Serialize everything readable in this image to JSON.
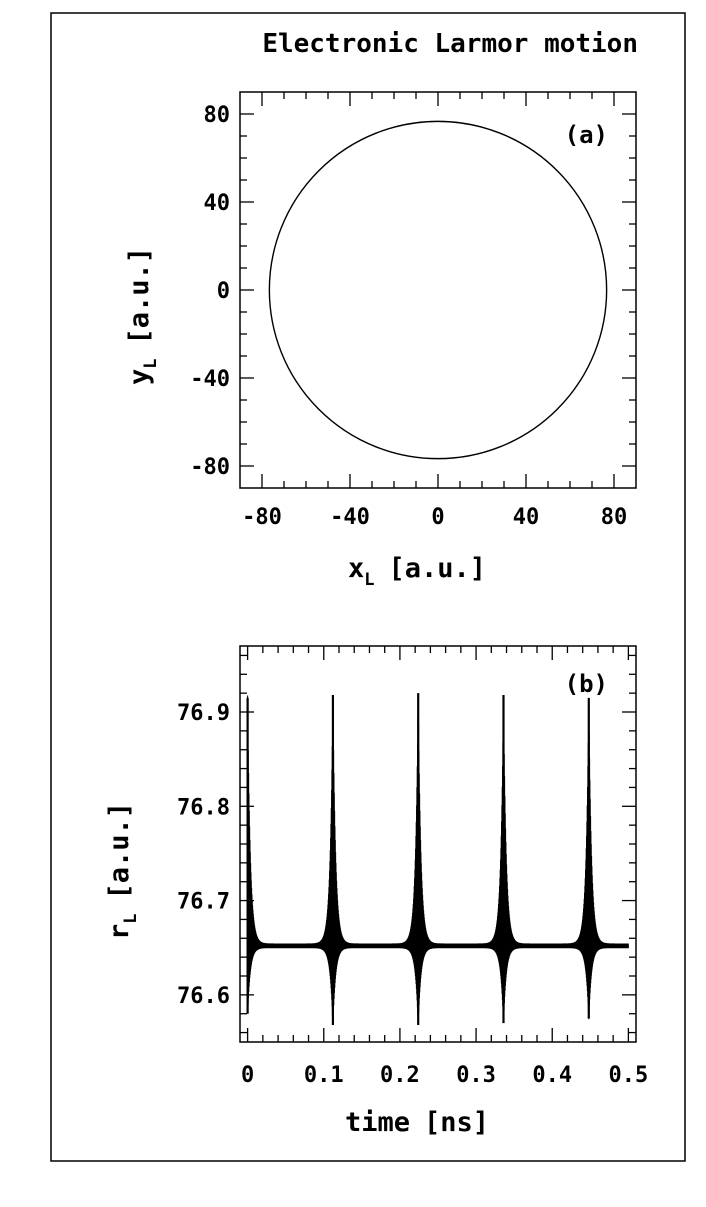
{
  "figure": {
    "title": "Electronic Larmor motion"
  },
  "chart_data": [
    {
      "type": "line",
      "panel_label": "(a)",
      "xlabel": {
        "main": "x",
        "sub": "L",
        "unit": "[a.u.]"
      },
      "ylabel": {
        "main": "y",
        "sub": "L",
        "unit": "[a.u.]"
      },
      "xlim": [
        -90,
        90
      ],
      "ylim": [
        -90,
        90
      ],
      "xticks": [
        -80,
        -40,
        0,
        40,
        80
      ],
      "yticks": [
        80,
        40,
        0,
        -40,
        -80
      ],
      "series": [
        {
          "shape": "circle",
          "center": [
            0,
            0
          ],
          "radius": 76.65
        }
      ]
    },
    {
      "type": "line",
      "panel_label": "(b)",
      "xlabel": {
        "main": "time",
        "unit": "[ns]"
      },
      "ylabel": {
        "main": "r",
        "sub": "L",
        "unit": "[a.u.]"
      },
      "xlim": [
        -0.01,
        0.51
      ],
      "ylim": [
        76.55,
        76.97
      ],
      "xticks": [
        "0",
        "0.1",
        "0.2",
        "0.3",
        "0.4",
        "0.5"
      ],
      "yticks": [
        "76.9",
        "76.8",
        "76.7",
        "76.6"
      ],
      "baseline": 76.652,
      "series": [
        {
          "peaks": [
            {
              "t": 0.0,
              "max": 76.915,
              "min": 76.58
            },
            {
              "t": 0.112,
              "max": 76.918,
              "min": 76.568
            },
            {
              "t": 0.224,
              "max": 76.92,
              "min": 76.568
            },
            {
              "t": 0.336,
              "max": 76.918,
              "min": 76.57
            },
            {
              "t": 0.448,
              "max": 76.915,
              "min": 76.575
            }
          ],
          "t_end": 0.5
        }
      ]
    }
  ]
}
